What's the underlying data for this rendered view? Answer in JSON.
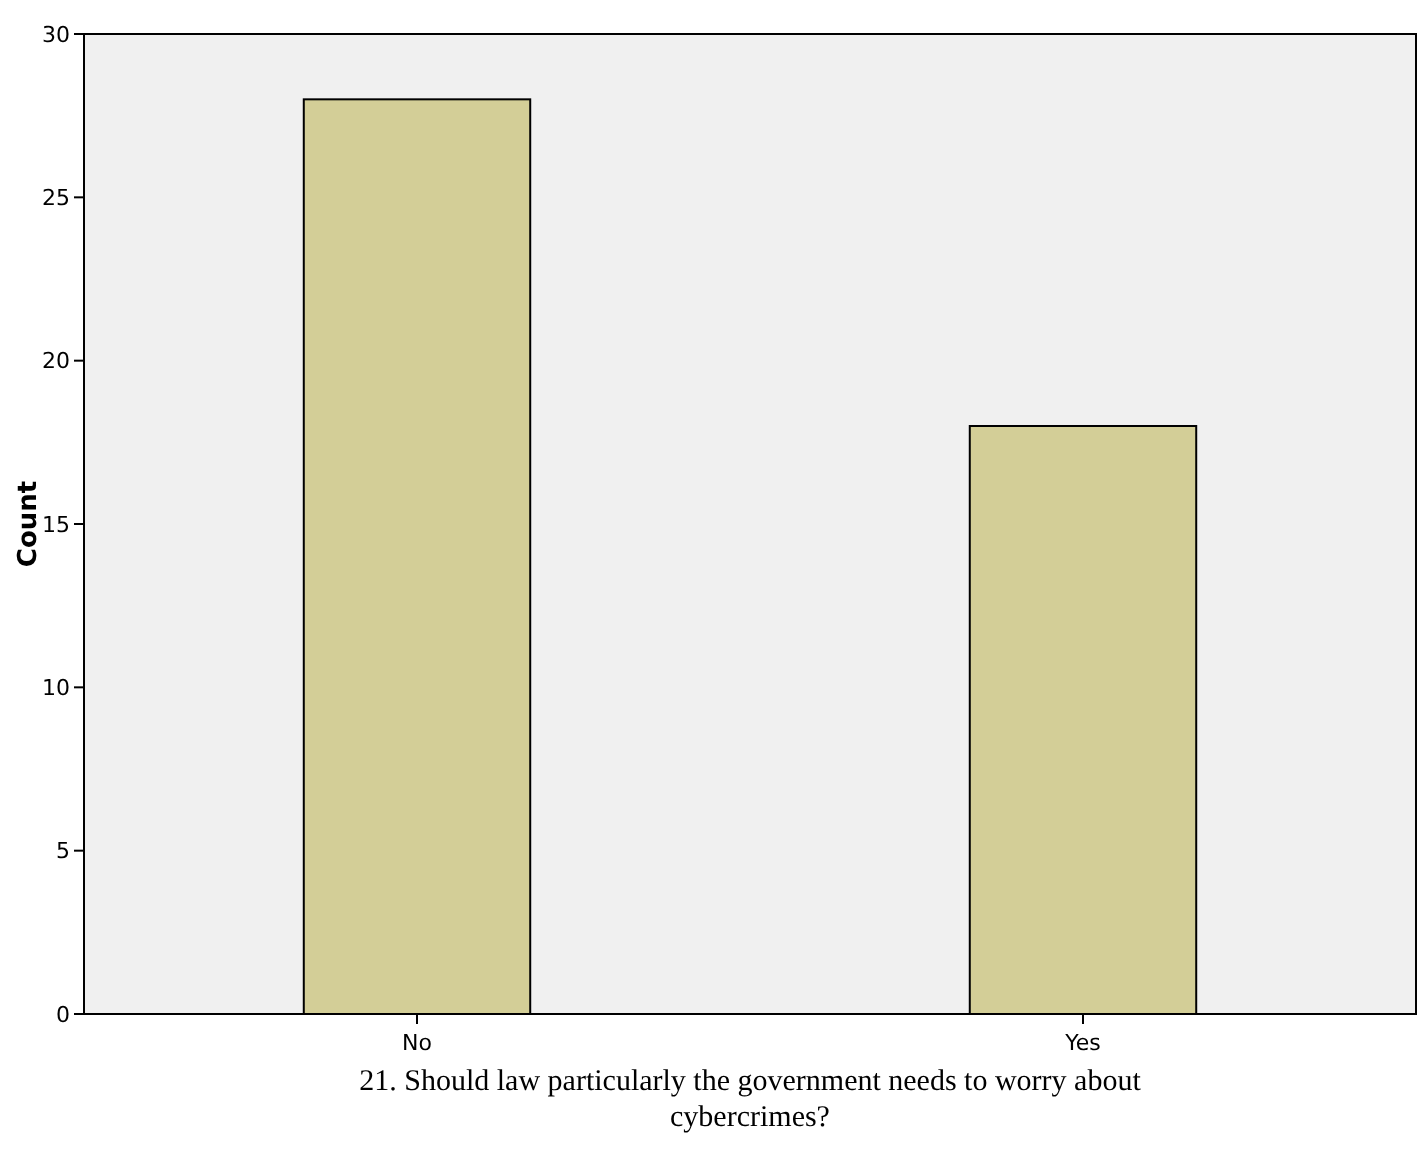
{
  "chart_data": {
    "type": "bar",
    "xlabel": "21. Should law particularly the government needs to worry about cybercrimes?",
    "ylabel": "Count",
    "categories": [
      "No",
      "Yes"
    ],
    "values": [
      28,
      18
    ],
    "color": "#d3ce97",
    "ylim": [
      0,
      30
    ],
    "yticks": [
      0,
      5,
      10,
      15,
      20,
      25,
      30
    ]
  }
}
